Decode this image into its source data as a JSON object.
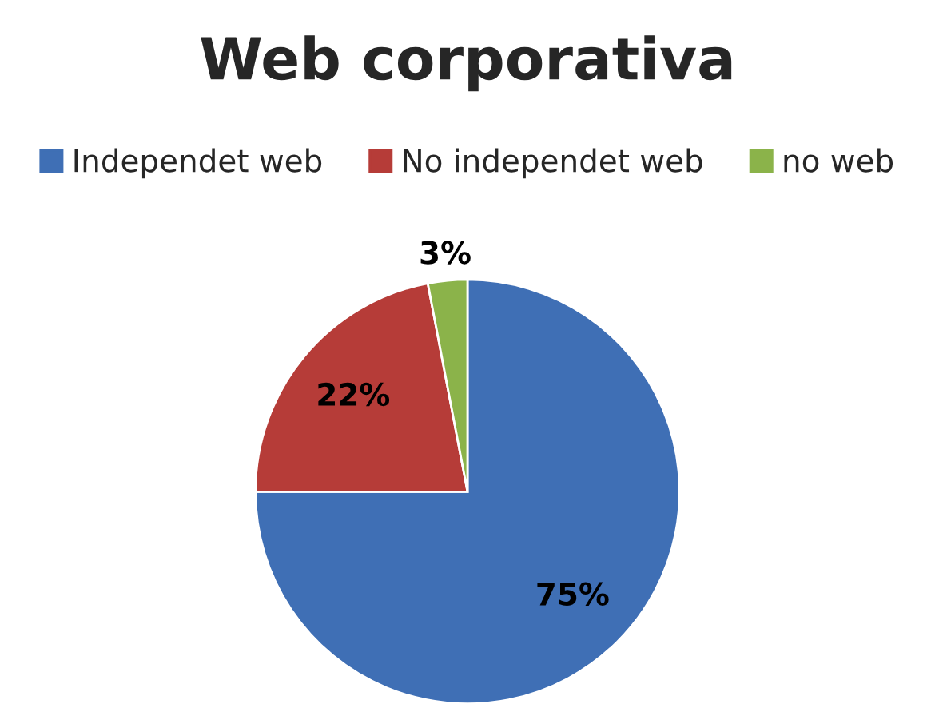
{
  "chart_data": {
    "type": "pie",
    "title": "Web corporativa",
    "categories": [
      "Independet web",
      "No independet web",
      "no web"
    ],
    "values": [
      75,
      22,
      3
    ],
    "colors": [
      "#3f6fb5",
      "#b63c38",
      "#8bb34a"
    ],
    "value_labels": [
      "75%",
      "22%",
      "3%"
    ],
    "legend": "top"
  }
}
